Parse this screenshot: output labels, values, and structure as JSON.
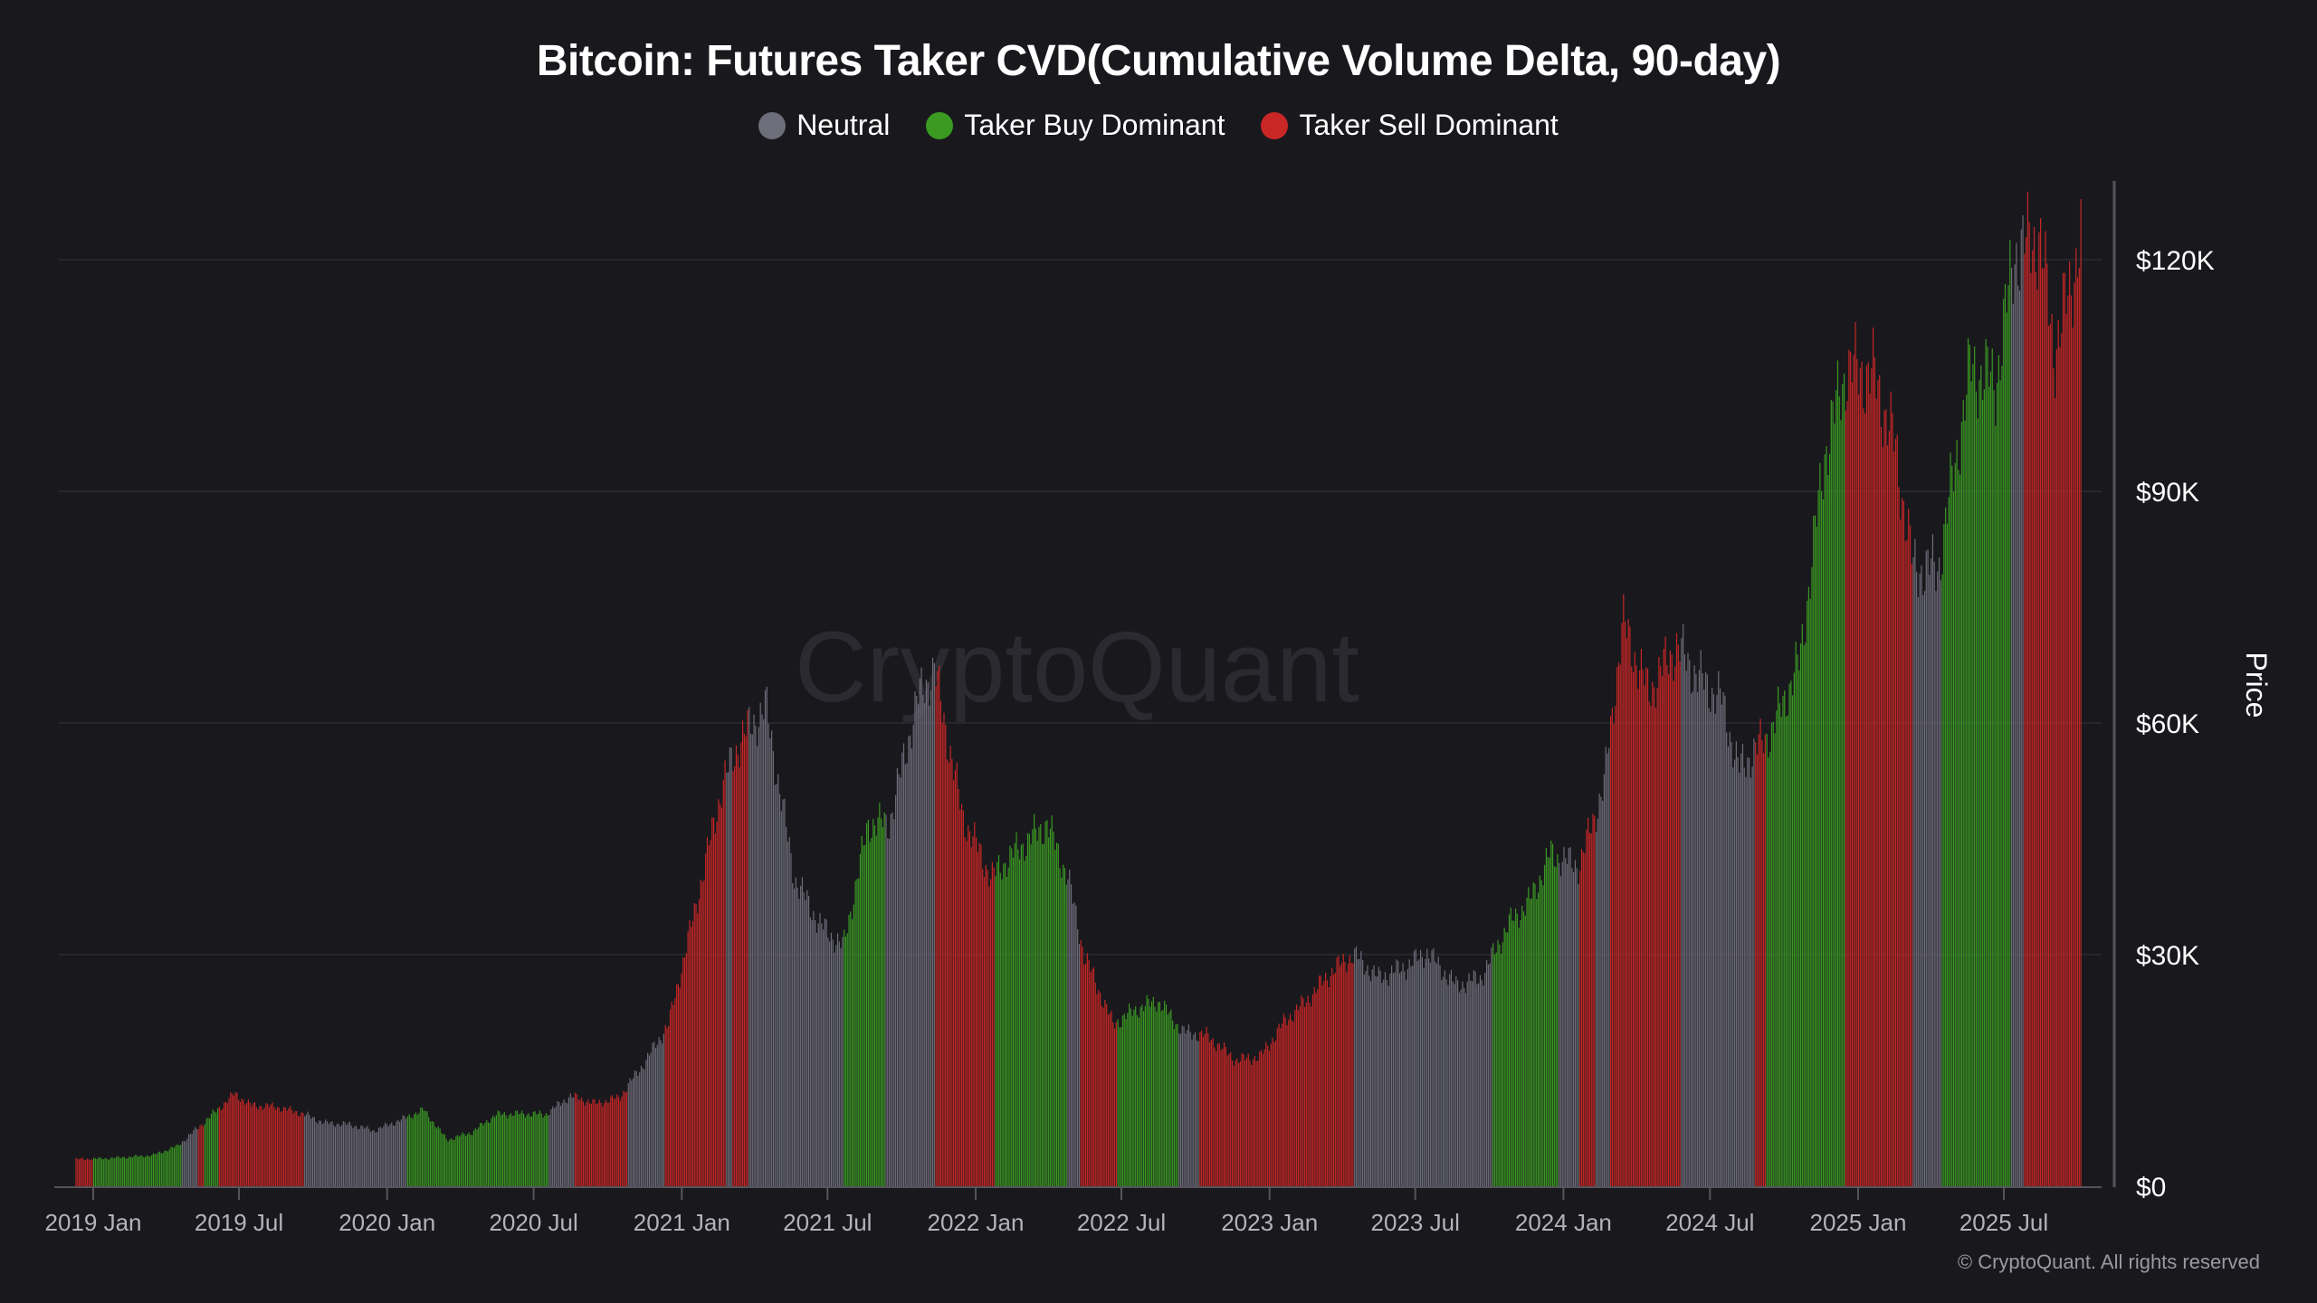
{
  "chart_data": {
    "type": "bar",
    "title": "Bitcoin: Futures Taker CVD(Cumulative Volume Delta, 90-day)",
    "ylabel": "Price",
    "ylim": [
      0,
      130000
    ],
    "y_ticks": [
      {
        "value": 0,
        "label": "$0"
      },
      {
        "value": 30000,
        "label": "$30K"
      },
      {
        "value": 60000,
        "label": "$60K"
      },
      {
        "value": 90000,
        "label": "$90K"
      },
      {
        "value": 120000,
        "label": "$120K"
      }
    ],
    "x_ticks": [
      {
        "date": "2019-01-01",
        "label": "2019 Jan"
      },
      {
        "date": "2019-07-01",
        "label": "2019 Jul"
      },
      {
        "date": "2020-01-01",
        "label": "2020 Jan"
      },
      {
        "date": "2020-07-01",
        "label": "2020 Jul"
      },
      {
        "date": "2021-01-01",
        "label": "2021 Jan"
      },
      {
        "date": "2021-07-01",
        "label": "2021 Jul"
      },
      {
        "date": "2022-01-01",
        "label": "2022 Jan"
      },
      {
        "date": "2022-07-01",
        "label": "2022 Jul"
      },
      {
        "date": "2023-01-01",
        "label": "2023 Jan"
      },
      {
        "date": "2023-07-01",
        "label": "2023 Jul"
      },
      {
        "date": "2024-01-01",
        "label": "2024 Jan"
      },
      {
        "date": "2024-07-01",
        "label": "2024 Jul"
      },
      {
        "date": "2025-01-01",
        "label": "2025 Jan"
      },
      {
        "date": "2025-07-01",
        "label": "2025 Jul"
      }
    ],
    "grid": "horizontal",
    "legend_position": "top-center",
    "legend": [
      {
        "key": "neutral",
        "label": "Neutral",
        "color": "#6e6d7a"
      },
      {
        "key": "buy",
        "label": "Taker Buy Dominant",
        "color": "#3a9a22"
      },
      {
        "key": "sell",
        "label": "Taker Sell Dominant",
        "color": "#c92626"
      }
    ],
    "price": [
      [
        "2018-12-10",
        3500
      ],
      [
        "2019-01-15",
        3600
      ],
      [
        "2019-02-15",
        3800
      ],
      [
        "2019-03-15",
        4000
      ],
      [
        "2019-04-15",
        5200
      ],
      [
        "2019-05-15",
        8000
      ],
      [
        "2019-06-25",
        12000
      ],
      [
        "2019-07-15",
        10500
      ],
      [
        "2019-08-15",
        10300
      ],
      [
        "2019-09-15",
        9500
      ],
      [
        "2019-10-15",
        8200
      ],
      [
        "2019-11-15",
        8000
      ],
      [
        "2019-12-15",
        7200
      ],
      [
        "2020-01-15",
        8500
      ],
      [
        "2020-02-15",
        9900
      ],
      [
        "2020-03-15",
        6000
      ],
      [
        "2020-04-15",
        7000
      ],
      [
        "2020-05-15",
        9300
      ],
      [
        "2020-06-15",
        9400
      ],
      [
        "2020-07-15",
        9300
      ],
      [
        "2020-08-15",
        11700
      ],
      [
        "2020-09-15",
        10700
      ],
      [
        "2020-10-15",
        11500
      ],
      [
        "2020-11-15",
        16000
      ],
      [
        "2020-12-15",
        21000
      ],
      [
        "2021-01-15",
        35000
      ],
      [
        "2021-02-20",
        52000
      ],
      [
        "2021-03-15",
        58000
      ],
      [
        "2021-04-15",
        62000
      ],
      [
        "2021-05-20",
        40000
      ],
      [
        "2021-06-20",
        34000
      ],
      [
        "2021-07-20",
        31000
      ],
      [
        "2021-08-20",
        47000
      ],
      [
        "2021-09-15",
        47000
      ],
      [
        "2021-10-20",
        63000
      ],
      [
        "2021-11-10",
        67000
      ],
      [
        "2021-12-15",
        48000
      ],
      [
        "2022-01-20",
        40000
      ],
      [
        "2022-02-15",
        43000
      ],
      [
        "2022-03-30",
        47000
      ],
      [
        "2022-04-25",
        40000
      ],
      [
        "2022-05-15",
        30000
      ],
      [
        "2022-06-20",
        21000
      ],
      [
        "2022-07-20",
        23000
      ],
      [
        "2022-08-15",
        24000
      ],
      [
        "2022-09-15",
        20000
      ],
      [
        "2022-10-15",
        19500
      ],
      [
        "2022-11-20",
        16300
      ],
      [
        "2022-12-20",
        16800
      ],
      [
        "2023-01-20",
        21500
      ],
      [
        "2023-02-15",
        24000
      ],
      [
        "2023-03-20",
        28000
      ],
      [
        "2023-04-15",
        30000
      ],
      [
        "2023-05-15",
        27000
      ],
      [
        "2023-06-20",
        28500
      ],
      [
        "2023-07-15",
        30300
      ],
      [
        "2023-08-20",
        26000
      ],
      [
        "2023-09-20",
        27000
      ],
      [
        "2023-10-25",
        34000
      ],
      [
        "2023-11-20",
        37000
      ],
      [
        "2023-12-15",
        43000
      ],
      [
        "2024-01-20",
        41500
      ],
      [
        "2024-02-20",
        52000
      ],
      [
        "2024-03-14",
        73000
      ],
      [
        "2024-04-15",
        64000
      ],
      [
        "2024-05-20",
        70000
      ],
      [
        "2024-06-15",
        66000
      ],
      [
        "2024-07-15",
        63000
      ],
      [
        "2024-08-05",
        54000
      ],
      [
        "2024-09-15",
        59000
      ],
      [
        "2024-10-20",
        68000
      ],
      [
        "2024-11-20",
        95000
      ],
      [
        "2024-12-17",
        106000
      ],
      [
        "2025-01-20",
        105000
      ],
      [
        "2025-02-15",
        96000
      ],
      [
        "2025-03-10",
        80000
      ],
      [
        "2025-04-10",
        80000
      ],
      [
        "2025-05-20",
        106000
      ],
      [
        "2025-06-20",
        104000
      ],
      [
        "2025-07-14",
        121000
      ],
      [
        "2025-08-14",
        123000
      ],
      [
        "2025-09-01",
        108000
      ],
      [
        "2025-09-20",
        116000
      ],
      [
        "2025-10-06",
        124000
      ]
    ],
    "regimes": [
      [
        "2018-12-10",
        "2019-01-01",
        "sell"
      ],
      [
        "2019-01-01",
        "2019-04-20",
        "buy"
      ],
      [
        "2019-04-20",
        "2019-05-10",
        "neutral"
      ],
      [
        "2019-05-10",
        "2019-05-18",
        "sell"
      ],
      [
        "2019-05-18",
        "2019-06-05",
        "buy"
      ],
      [
        "2019-06-05",
        "2019-09-20",
        "sell"
      ],
      [
        "2019-09-20",
        "2020-01-25",
        "neutral"
      ],
      [
        "2020-01-25",
        "2020-07-20",
        "buy"
      ],
      [
        "2020-07-20",
        "2020-08-20",
        "neutral"
      ],
      [
        "2020-08-20",
        "2020-10-25",
        "sell"
      ],
      [
        "2020-10-25",
        "2020-12-10",
        "neutral"
      ],
      [
        "2020-12-10",
        "2021-02-25",
        "sell"
      ],
      [
        "2021-02-25",
        "2021-03-05",
        "neutral"
      ],
      [
        "2021-03-05",
        "2021-03-25",
        "sell"
      ],
      [
        "2021-03-25",
        "2021-07-20",
        "neutral"
      ],
      [
        "2021-07-20",
        "2021-09-10",
        "buy"
      ],
      [
        "2021-09-10",
        "2021-11-12",
        "neutral"
      ],
      [
        "2021-11-12",
        "2022-01-25",
        "sell"
      ],
      [
        "2022-01-25",
        "2022-04-25",
        "buy"
      ],
      [
        "2022-04-25",
        "2022-05-10",
        "neutral"
      ],
      [
        "2022-05-10",
        "2022-06-25",
        "sell"
      ],
      [
        "2022-06-25",
        "2022-09-10",
        "buy"
      ],
      [
        "2022-09-10",
        "2022-10-05",
        "neutral"
      ],
      [
        "2022-10-05",
        "2023-04-15",
        "sell"
      ],
      [
        "2023-04-15",
        "2023-10-05",
        "neutral"
      ],
      [
        "2023-10-05",
        "2023-12-25",
        "buy"
      ],
      [
        "2023-12-25",
        "2024-01-20",
        "neutral"
      ],
      [
        "2024-01-20",
        "2024-02-10",
        "sell"
      ],
      [
        "2024-02-10",
        "2024-02-28",
        "neutral"
      ],
      [
        "2024-02-28",
        "2024-05-25",
        "sell"
      ],
      [
        "2024-05-25",
        "2024-08-25",
        "neutral"
      ],
      [
        "2024-08-25",
        "2024-09-08",
        "sell"
      ],
      [
        "2024-09-08",
        "2024-12-15",
        "buy"
      ],
      [
        "2024-12-15",
        "2025-03-10",
        "sell"
      ],
      [
        "2025-03-10",
        "2025-04-15",
        "neutral"
      ],
      [
        "2025-04-15",
        "2025-07-10",
        "buy"
      ],
      [
        "2025-07-10",
        "2025-07-25",
        "neutral"
      ],
      [
        "2025-07-25",
        "2025-10-06",
        "sell"
      ]
    ]
  },
  "watermark": "CryptoQuant",
  "copyright": "© CryptoQuant. All rights reserved"
}
